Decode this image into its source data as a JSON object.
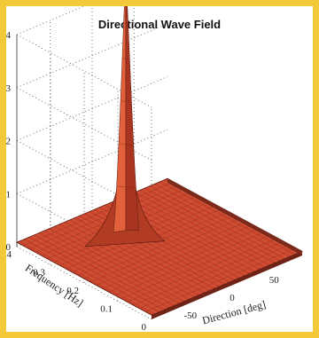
{
  "chart_data": {
    "type": "surface3d",
    "title": "Directional Wave Field",
    "xlabel": "Direction [deg]",
    "ylabel": "Frequency [Hz]",
    "zlabel": "",
    "x_ticks": [
      "-50",
      "0",
      "50"
    ],
    "y_ticks": [
      "0",
      "0.1",
      "0.2",
      "0.3",
      "0.4"
    ],
    "z_ticks": [
      "0",
      "1",
      "2",
      "3",
      "4"
    ],
    "xlim": [
      -90,
      90
    ],
    "ylim": [
      0,
      0.4
    ],
    "zlim": [
      0,
      4
    ],
    "peak": {
      "direction": 0,
      "frequency": 0.3,
      "value": 4.9
    },
    "grid": true,
    "surface_color": "#c8452c",
    "background_color": "#f3c93a"
  }
}
